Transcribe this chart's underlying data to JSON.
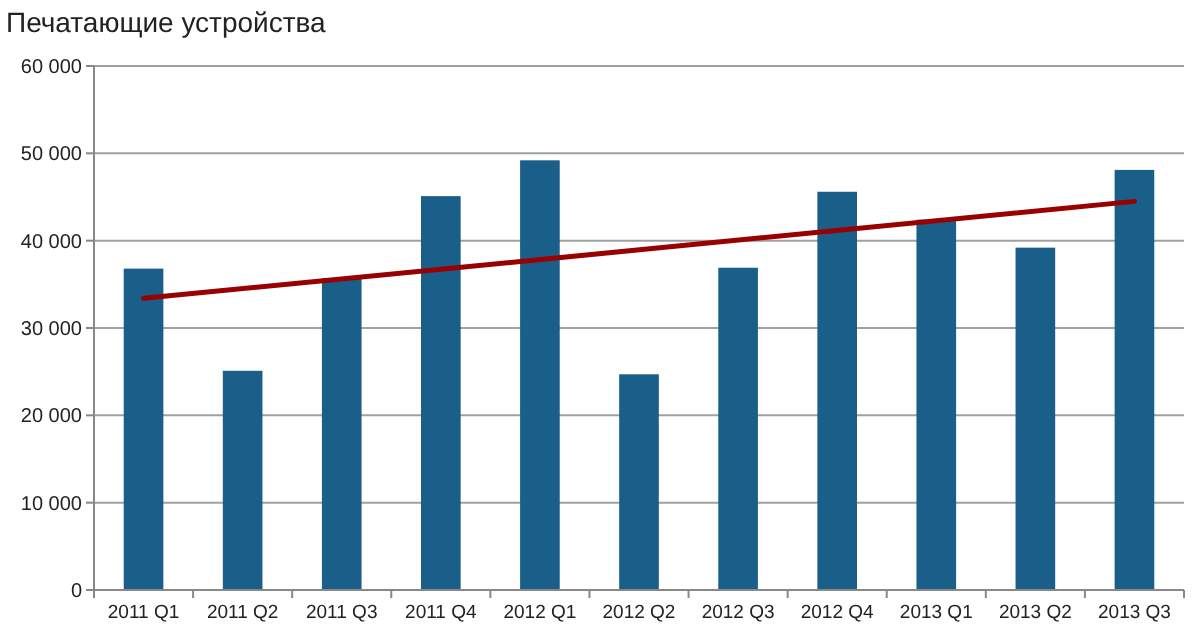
{
  "chart_data": {
    "type": "bar",
    "title": "Печатающие устройства",
    "categories": [
      "2011 Q1",
      "2011 Q2",
      "2011 Q3",
      "2011 Q4",
      "2012 Q1",
      "2012 Q2",
      "2012 Q3",
      "2012 Q4",
      "2013 Q1",
      "2013 Q2",
      "2013 Q3"
    ],
    "series": [
      {
        "color": "#1a5f8a",
        "values": [
          36800,
          25100,
          35700,
          45100,
          49200,
          24700,
          36900,
          45600,
          42400,
          39200,
          48100
        ]
      },
      {
        "type": "line",
        "color": "#990000",
        "x": [
          "2011 Q1",
          "2013 Q3"
        ],
        "values": [
          33400,
          44500
        ]
      }
    ],
    "ylim": [
      0,
      60000
    ],
    "yticks": [
      {
        "value": 0,
        "label": "0"
      },
      {
        "value": 10000,
        "label": "10 000"
      },
      {
        "value": 20000,
        "label": "20 000"
      },
      {
        "value": 30000,
        "label": "30 000"
      },
      {
        "value": 40000,
        "label": "40 000"
      },
      {
        "value": 50000,
        "label": "50 000"
      },
      {
        "value": 60000,
        "label": "60 000"
      }
    ],
    "grid": "y",
    "marker": "none",
    "line_style": "solid"
  }
}
